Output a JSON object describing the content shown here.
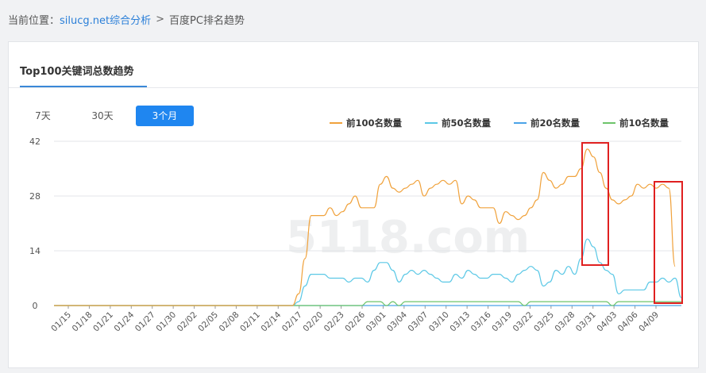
{
  "breadcrumb": {
    "prefix": "当前位置：",
    "link": "silucg.net综合分析",
    "separator": ">",
    "current": "百度PC排名趋势"
  },
  "card": {
    "title": "Top100关键词总数趋势"
  },
  "range_buttons": [
    {
      "label": "7天",
      "active": false
    },
    {
      "label": "30天",
      "active": false
    },
    {
      "label": "3个月",
      "active": true
    }
  ],
  "colors": {
    "accent": "#1f86f0",
    "series_top100": "#f0a23c",
    "series_top50": "#5bc8e6",
    "series_top20": "#4aa3e8",
    "series_top10": "#6dc46a",
    "highlight_box": "#e02020"
  },
  "watermark": "5118.com",
  "chart_data": {
    "type": "line",
    "ylim": [
      0,
      42
    ],
    "y_ticks": [
      0,
      14,
      28,
      42
    ],
    "x_tick_labels": [
      "01/15",
      "01/18",
      "01/21",
      "01/24",
      "01/27",
      "01/30",
      "02/02",
      "02/05",
      "02/08",
      "02/11",
      "02/14",
      "02/17",
      "02/20",
      "02/23",
      "02/26",
      "03/01",
      "03/04",
      "03/07",
      "03/10",
      "03/13",
      "03/16",
      "03/19",
      "03/22",
      "03/25",
      "03/28",
      "03/31",
      "04/03",
      "04/06",
      "04/09"
    ],
    "x_range": [
      0,
      86
    ],
    "series": [
      {
        "name": "前100名数量",
        "color": "#f0a23c",
        "points": [
          [
            0,
            0
          ],
          [
            38,
            0
          ],
          [
            39,
            3
          ],
          [
            40,
            12
          ],
          [
            41,
            23
          ],
          [
            42,
            23
          ],
          [
            43,
            23
          ],
          [
            44,
            25
          ],
          [
            45,
            23
          ],
          [
            46,
            24
          ],
          [
            47,
            26
          ],
          [
            48,
            28
          ],
          [
            49,
            25
          ],
          [
            50,
            25
          ],
          [
            51,
            25
          ],
          [
            52,
            31
          ],
          [
            53,
            33
          ],
          [
            54,
            30
          ],
          [
            55,
            29
          ],
          [
            56,
            30
          ],
          [
            57,
            31
          ],
          [
            58,
            32
          ],
          [
            59,
            28
          ],
          [
            60,
            30
          ],
          [
            61,
            31
          ],
          [
            62,
            32
          ],
          [
            63,
            31
          ],
          [
            64,
            32
          ],
          [
            65,
            26
          ],
          [
            66,
            28
          ],
          [
            67,
            27
          ],
          [
            68,
            25
          ],
          [
            69,
            25
          ],
          [
            70,
            25
          ],
          [
            71,
            21
          ],
          [
            72,
            24
          ],
          [
            73,
            23
          ],
          [
            74,
            22
          ],
          [
            75,
            23
          ],
          [
            76,
            25
          ],
          [
            77,
            27
          ],
          [
            78,
            34
          ],
          [
            79,
            32
          ],
          [
            80,
            30
          ],
          [
            81,
            31
          ],
          [
            82,
            33
          ],
          [
            83,
            33
          ],
          [
            84,
            35
          ],
          [
            85,
            40
          ],
          [
            86,
            38
          ]
        ]
      },
      {
        "name": "前50名数量",
        "color": "#5bc8e6",
        "points": [
          [
            0,
            0
          ],
          [
            38,
            0
          ],
          [
            39,
            1
          ],
          [
            40,
            5
          ],
          [
            41,
            8
          ],
          [
            42,
            8
          ],
          [
            43,
            8
          ],
          [
            44,
            7
          ],
          [
            45,
            7
          ],
          [
            46,
            7
          ],
          [
            47,
            6
          ],
          [
            48,
            7
          ],
          [
            49,
            7
          ],
          [
            50,
            6
          ],
          [
            51,
            9
          ],
          [
            52,
            11
          ],
          [
            53,
            11
          ],
          [
            54,
            9
          ],
          [
            55,
            6
          ],
          [
            56,
            8
          ],
          [
            57,
            9
          ],
          [
            58,
            8
          ],
          [
            59,
            9
          ],
          [
            60,
            8
          ],
          [
            61,
            7
          ],
          [
            62,
            6
          ],
          [
            63,
            6
          ],
          [
            64,
            8
          ],
          [
            65,
            7
          ],
          [
            66,
            9
          ],
          [
            67,
            8
          ],
          [
            68,
            7
          ],
          [
            69,
            7
          ],
          [
            70,
            8
          ],
          [
            71,
            8
          ],
          [
            72,
            7
          ],
          [
            73,
            6
          ],
          [
            74,
            8
          ],
          [
            75,
            9
          ],
          [
            76,
            10
          ],
          [
            77,
            9
          ],
          [
            78,
            5
          ],
          [
            79,
            6
          ],
          [
            80,
            9
          ],
          [
            81,
            8
          ],
          [
            82,
            10
          ],
          [
            83,
            8
          ],
          [
            84,
            12
          ],
          [
            85,
            17
          ],
          [
            86,
            15
          ]
        ]
      },
      {
        "name": "前20名数量",
        "color": "#4aa3e8",
        "points": [
          [
            0,
            0
          ],
          [
            86,
            0
          ]
        ]
      },
      {
        "name": "前10名数量",
        "color": "#6dc46a",
        "points": [
          [
            0,
            0
          ],
          [
            49,
            0
          ],
          [
            50,
            1
          ],
          [
            52,
            1
          ],
          [
            53,
            0
          ],
          [
            54,
            1
          ],
          [
            55,
            0
          ],
          [
            56,
            1
          ],
          [
            74,
            1
          ],
          [
            75,
            0
          ],
          [
            76,
            1
          ],
          [
            86,
            1
          ]
        ]
      }
    ],
    "tail_top100": [
      [
        86,
        38
      ],
      [
        87,
        34
      ],
      [
        88,
        30
      ],
      [
        89,
        27
      ],
      [
        90,
        26
      ],
      [
        91,
        27
      ],
      [
        92,
        28
      ],
      [
        93,
        31
      ],
      [
        94,
        30
      ],
      [
        95,
        31
      ],
      [
        96,
        30
      ],
      [
        97,
        31
      ],
      [
        98,
        30
      ],
      [
        99,
        10
      ]
    ],
    "tail_top50": [
      [
        86,
        15
      ],
      [
        87,
        11
      ],
      [
        88,
        9
      ],
      [
        89,
        8
      ],
      [
        90,
        3
      ],
      [
        91,
        4
      ],
      [
        92,
        4
      ],
      [
        93,
        4
      ],
      [
        94,
        4
      ],
      [
        95,
        6
      ],
      [
        96,
        6
      ],
      [
        97,
        7
      ],
      [
        98,
        6
      ],
      [
        99,
        7
      ],
      [
        100,
        2
      ]
    ],
    "tail_top10": [
      [
        86,
        1
      ],
      [
        88,
        1
      ],
      [
        89,
        0
      ],
      [
        90,
        1
      ],
      [
        100,
        1
      ]
    ],
    "x_total": 100
  }
}
